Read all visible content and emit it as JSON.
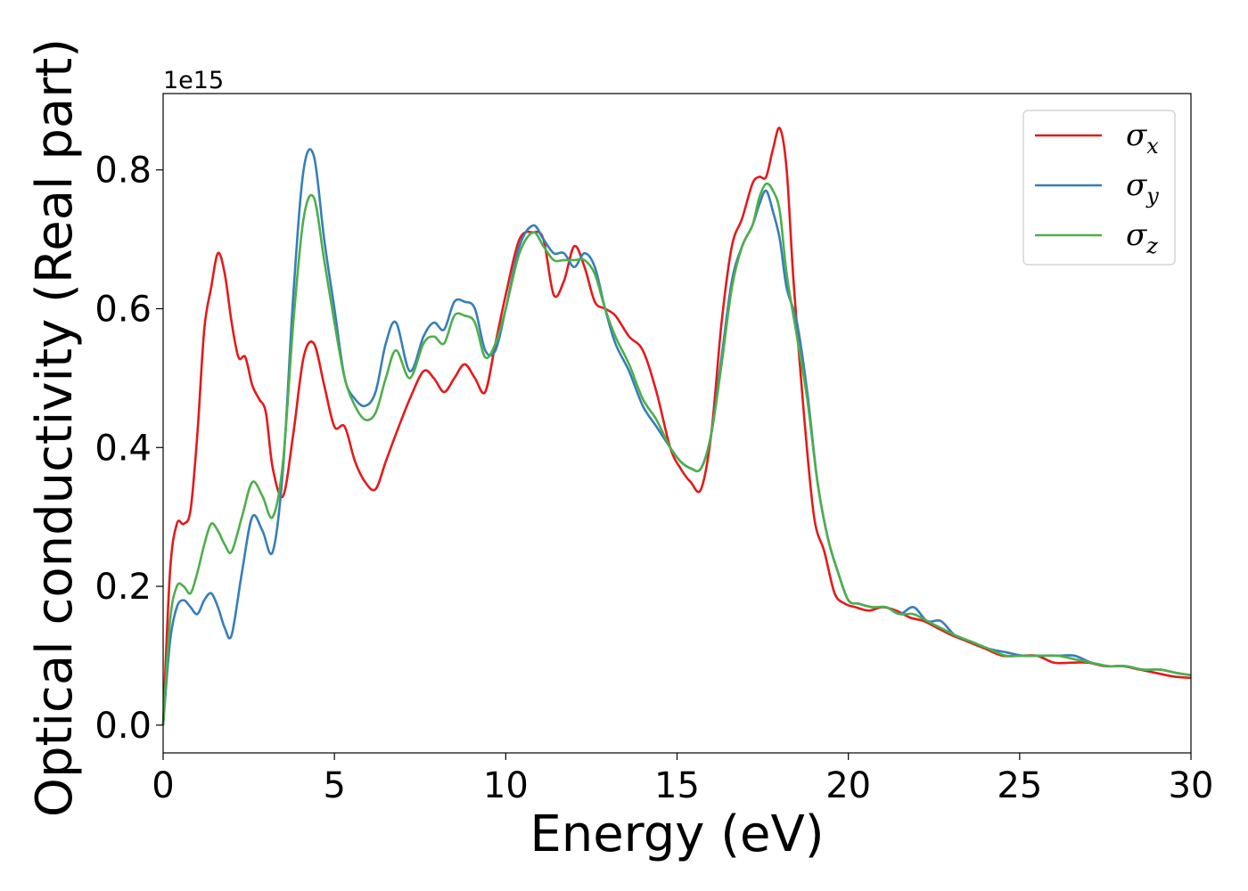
{
  "chart_data": {
    "type": "line",
    "title": "",
    "xlabel": "Energy (eV)",
    "ylabel": "Optical conductivity (Real part)",
    "y_offset_label": "1e15",
    "xlim": [
      0,
      30
    ],
    "ylim": [
      -0.04,
      0.91
    ],
    "x_ticks": [
      0,
      5,
      10,
      15,
      20,
      25,
      30
    ],
    "x_tick_labels": [
      "0",
      "5",
      "10",
      "15",
      "20",
      "25",
      "30"
    ],
    "y_ticks": [
      0.0,
      0.2,
      0.4,
      0.6,
      0.8
    ],
    "y_tick_labels": [
      "0.0",
      "0.2",
      "0.4",
      "0.6",
      "0.8"
    ],
    "grid": false,
    "legend_position": "top-right",
    "series": [
      {
        "name": "σx",
        "legend_base": "σ",
        "legend_sub": "x",
        "color": "#e41a1c",
        "x": [
          0,
          0.2,
          0.4,
          0.6,
          0.8,
          1.0,
          1.2,
          1.4,
          1.6,
          1.8,
          2.0,
          2.2,
          2.4,
          2.6,
          2.8,
          3.0,
          3.2,
          3.5,
          3.8,
          4.1,
          4.4,
          4.7,
          5.0,
          5.3,
          5.6,
          5.9,
          6.2,
          6.5,
          6.8,
          7.2,
          7.6,
          7.9,
          8.2,
          8.5,
          8.8,
          9.1,
          9.4,
          9.7,
          10.0,
          10.4,
          10.8,
          11.1,
          11.4,
          11.7,
          12.0,
          12.3,
          12.6,
          12.9,
          13.2,
          13.6,
          14.0,
          14.4,
          14.8,
          15.1,
          15.4,
          15.7,
          16.0,
          16.3,
          16.6,
          16.9,
          17.2,
          17.4,
          17.6,
          17.8,
          18.0,
          18.2,
          18.4,
          18.7,
          19.0,
          19.3,
          19.6,
          19.9,
          20.2,
          20.6,
          21.0,
          21.4,
          21.8,
          22.2,
          22.6,
          23.0,
          23.5,
          24.0,
          24.5,
          25.0,
          25.5,
          26.0,
          26.5,
          27.0,
          27.5,
          28.0,
          28.5,
          29.0,
          29.5,
          30.0
        ],
        "y": [
          0.0,
          0.22,
          0.29,
          0.29,
          0.31,
          0.42,
          0.57,
          0.63,
          0.68,
          0.65,
          0.58,
          0.53,
          0.53,
          0.49,
          0.47,
          0.45,
          0.37,
          0.33,
          0.42,
          0.53,
          0.55,
          0.49,
          0.43,
          0.43,
          0.38,
          0.35,
          0.34,
          0.38,
          0.42,
          0.47,
          0.51,
          0.5,
          0.48,
          0.5,
          0.52,
          0.5,
          0.48,
          0.55,
          0.62,
          0.7,
          0.71,
          0.7,
          0.62,
          0.64,
          0.69,
          0.66,
          0.61,
          0.6,
          0.59,
          0.56,
          0.54,
          0.48,
          0.4,
          0.37,
          0.35,
          0.34,
          0.42,
          0.58,
          0.69,
          0.73,
          0.78,
          0.79,
          0.79,
          0.83,
          0.86,
          0.8,
          0.64,
          0.45,
          0.3,
          0.25,
          0.19,
          0.175,
          0.17,
          0.165,
          0.17,
          0.165,
          0.155,
          0.15,
          0.14,
          0.13,
          0.12,
          0.11,
          0.1,
          0.1,
          0.1,
          0.09,
          0.09,
          0.09,
          0.085,
          0.085,
          0.08,
          0.075,
          0.07,
          0.068
        ]
      },
      {
        "name": "σy",
        "legend_base": "σ",
        "legend_sub": "y",
        "color": "#377eb8",
        "x": [
          0,
          0.2,
          0.4,
          0.6,
          0.8,
          1.0,
          1.2,
          1.4,
          1.6,
          1.8,
          2.0,
          2.3,
          2.6,
          2.9,
          3.2,
          3.5,
          3.8,
          4.1,
          4.4,
          4.7,
          5.0,
          5.3,
          5.6,
          5.9,
          6.2,
          6.5,
          6.8,
          7.2,
          7.6,
          7.9,
          8.2,
          8.5,
          8.8,
          9.1,
          9.4,
          9.7,
          10.0,
          10.4,
          10.8,
          11.1,
          11.4,
          11.7,
          12.0,
          12.3,
          12.6,
          12.9,
          13.2,
          13.6,
          14.0,
          14.4,
          14.8,
          15.1,
          15.4,
          15.7,
          16.0,
          16.3,
          16.6,
          16.9,
          17.2,
          17.4,
          17.6,
          17.8,
          18.0,
          18.2,
          18.5,
          18.8,
          19.1,
          19.4,
          19.7,
          20.0,
          20.3,
          20.7,
          21.1,
          21.5,
          21.9,
          22.3,
          22.7,
          23.1,
          23.6,
          24.1,
          24.6,
          25.1,
          25.6,
          26.1,
          26.6,
          27.1,
          27.6,
          28.1,
          28.6,
          29.1,
          29.6,
          30.0
        ],
        "y": [
          0.0,
          0.12,
          0.17,
          0.18,
          0.17,
          0.16,
          0.18,
          0.19,
          0.17,
          0.14,
          0.13,
          0.22,
          0.3,
          0.28,
          0.25,
          0.37,
          0.62,
          0.8,
          0.82,
          0.7,
          0.6,
          0.5,
          0.47,
          0.46,
          0.48,
          0.55,
          0.58,
          0.51,
          0.56,
          0.58,
          0.57,
          0.61,
          0.61,
          0.6,
          0.54,
          0.54,
          0.6,
          0.69,
          0.72,
          0.7,
          0.68,
          0.68,
          0.66,
          0.68,
          0.66,
          0.6,
          0.55,
          0.51,
          0.46,
          0.43,
          0.4,
          0.38,
          0.37,
          0.37,
          0.42,
          0.53,
          0.64,
          0.69,
          0.72,
          0.75,
          0.77,
          0.74,
          0.7,
          0.63,
          0.58,
          0.48,
          0.35,
          0.27,
          0.22,
          0.18,
          0.175,
          0.17,
          0.17,
          0.16,
          0.17,
          0.15,
          0.15,
          0.13,
          0.12,
          0.11,
          0.105,
          0.1,
          0.1,
          0.1,
          0.1,
          0.09,
          0.085,
          0.085,
          0.08,
          0.08,
          0.075,
          0.072
        ]
      },
      {
        "name": "σz",
        "legend_base": "σ",
        "legend_sub": "z",
        "color": "#4daf4a",
        "x": [
          0,
          0.2,
          0.4,
          0.6,
          0.8,
          1.0,
          1.2,
          1.4,
          1.6,
          1.8,
          2.0,
          2.3,
          2.6,
          2.9,
          3.2,
          3.5,
          3.8,
          4.1,
          4.4,
          4.7,
          5.0,
          5.3,
          5.6,
          5.9,
          6.2,
          6.5,
          6.8,
          7.2,
          7.6,
          7.9,
          8.2,
          8.5,
          8.8,
          9.1,
          9.4,
          9.7,
          10.0,
          10.4,
          10.8,
          11.1,
          11.4,
          11.7,
          12.0,
          12.3,
          12.6,
          12.9,
          13.2,
          13.6,
          14.0,
          14.4,
          14.8,
          15.1,
          15.4,
          15.7,
          16.0,
          16.3,
          16.6,
          16.9,
          17.2,
          17.4,
          17.6,
          17.8,
          18.0,
          18.2,
          18.5,
          18.8,
          19.1,
          19.4,
          19.7,
          20.0,
          20.3,
          20.7,
          21.1,
          21.5,
          21.9,
          22.3,
          22.7,
          23.1,
          23.6,
          24.1,
          24.6,
          25.1,
          25.6,
          26.1,
          26.6,
          27.1,
          27.6,
          28.1,
          28.6,
          29.1,
          29.6,
          30.0
        ],
        "y": [
          0.0,
          0.15,
          0.2,
          0.2,
          0.19,
          0.22,
          0.26,
          0.29,
          0.28,
          0.26,
          0.25,
          0.3,
          0.35,
          0.33,
          0.3,
          0.38,
          0.58,
          0.73,
          0.76,
          0.67,
          0.58,
          0.5,
          0.46,
          0.44,
          0.45,
          0.5,
          0.54,
          0.5,
          0.55,
          0.56,
          0.55,
          0.59,
          0.59,
          0.58,
          0.53,
          0.55,
          0.6,
          0.68,
          0.71,
          0.69,
          0.67,
          0.67,
          0.67,
          0.67,
          0.65,
          0.6,
          0.56,
          0.52,
          0.47,
          0.44,
          0.4,
          0.38,
          0.37,
          0.37,
          0.42,
          0.52,
          0.63,
          0.69,
          0.72,
          0.76,
          0.78,
          0.77,
          0.74,
          0.65,
          0.56,
          0.47,
          0.35,
          0.27,
          0.22,
          0.18,
          0.175,
          0.17,
          0.17,
          0.16,
          0.16,
          0.15,
          0.14,
          0.13,
          0.12,
          0.11,
          0.1,
          0.1,
          0.1,
          0.1,
          0.095,
          0.09,
          0.085,
          0.085,
          0.08,
          0.08,
          0.075,
          0.072
        ]
      }
    ]
  }
}
